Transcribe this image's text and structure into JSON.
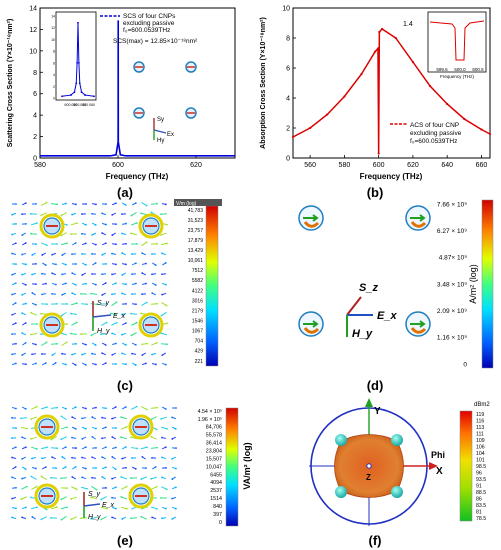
{
  "panels": {
    "a": "(a)",
    "b": "(b)",
    "c": "(c)",
    "d": "(d)",
    "e": "(e)",
    "f": "(f)"
  },
  "chart_data": [
    {
      "type": "line",
      "panel": "a",
      "xlabel": "Frequency (THz)",
      "ylabel": "Scattering Cross Section (Y×10⁻¹⁸nm²)",
      "xlim": [
        580,
        630
      ],
      "ylim": [
        0,
        14
      ],
      "xticks": [
        "580",
        "600",
        "620"
      ],
      "yticks": [
        "0",
        "2",
        "4",
        "6",
        "8",
        "10",
        "12",
        "14"
      ],
      "legend": [
        "SCS of four CNPs",
        "excluding passive",
        "f₀=600.0539THz"
      ],
      "annotation": "SCS(max) = 12.85×10⁻¹⁸nm²",
      "series": [
        {
          "name": "SCS of four CNPs",
          "x": [
            580,
            590,
            598,
            599.5,
            600.03,
            600.054,
            600.08,
            600.6,
            602,
            610,
            620,
            630
          ],
          "y": [
            0.2,
            0.2,
            0.2,
            0.3,
            1.5,
            12.85,
            1.5,
            0.3,
            0.2,
            0.2,
            0.2,
            0.2
          ]
        }
      ],
      "inset": {
        "xticks": [
          "600.050",
          "600.055",
          "600.060"
        ],
        "yticks": [
          "0",
          "2",
          "4",
          "6",
          "8",
          "10",
          "12",
          "14"
        ]
      }
    },
    {
      "type": "line",
      "panel": "b",
      "xlabel": "Frequency (THz)",
      "ylabel": "Absorption Cross Section (Y×10⁻¹⁸nm²)",
      "xlim": [
        550,
        665
      ],
      "ylim": [
        0,
        10
      ],
      "xticks": [
        "560",
        "580",
        "600",
        "620",
        "640",
        "660"
      ],
      "yticks": [
        "0",
        "2",
        "4",
        "6",
        "8",
        "10"
      ],
      "legend": [
        "ACS of four CNP",
        "excluding passive",
        "f₀=600.0539THz"
      ],
      "annotation": "1.4",
      "series": [
        {
          "name": "ACS of four CNP",
          "x": [
            550,
            560,
            570,
            580,
            590,
            598,
            599.6,
            600,
            600.4,
            602,
            610,
            620,
            630,
            640,
            650,
            660,
            665
          ],
          "y": [
            1.4,
            2.0,
            2.9,
            4.1,
            5.6,
            7.1,
            7.3,
            0.3,
            8.4,
            8.6,
            8.0,
            6.4,
            4.8,
            3.6,
            2.6,
            1.9,
            1.6
          ]
        }
      ],
      "inset": {
        "xticks": [
          "599.5",
          "600.0",
          "600.5"
        ],
        "xlabel": "Frequency (THz)"
      }
    },
    {
      "type": "heatmap",
      "panel": "c",
      "colorbar_title": "V/m (log)",
      "colorbar_ticks": [
        "41,783",
        "31,523",
        "23,757",
        "17,879",
        "13,429",
        "10,061",
        "7512",
        "5582",
        "4122",
        "3016",
        "2179",
        "1546",
        "1067",
        "704",
        "429",
        "221"
      ],
      "vectors": [
        "S_y",
        "E_x",
        "H_y"
      ]
    },
    {
      "type": "heatmap",
      "panel": "d",
      "colorbar_title": "A/m² (log)",
      "colorbar_ticks": [
        "7.66 × 10⁹",
        "6.27 × 10⁹",
        "4.87× 10⁹",
        "3.48 × 10⁹",
        "2.09 × 10⁹",
        "1.16 × 10⁹",
        "0"
      ],
      "vectors": [
        "S_z",
        "E_x",
        "H_y"
      ]
    },
    {
      "type": "heatmap",
      "panel": "e",
      "colorbar_title": "VA/m² (log)",
      "colorbar_ticks": [
        "4.54 × 10⁵",
        "1.96 × 10⁵",
        "84,706",
        "55,578",
        "36,414",
        "23,804",
        "15,507",
        "10,047",
        "6455",
        "4094",
        "2537",
        "1514",
        "840",
        "397",
        "0"
      ],
      "vectors": [
        "S_y",
        "E_x",
        "H_y"
      ]
    },
    {
      "type": "heatmap",
      "panel": "f",
      "colorbar_title": "dBm2",
      "colorbar_ticks": [
        "119",
        "116",
        "113",
        "111",
        "109",
        "106",
        "104",
        "101",
        "98.5",
        "96",
        "93.5",
        "91",
        "88.5",
        "86",
        "83.5",
        "81",
        "78.5"
      ],
      "axes": [
        "Y",
        "X",
        "Z",
        "Phi"
      ]
    }
  ]
}
